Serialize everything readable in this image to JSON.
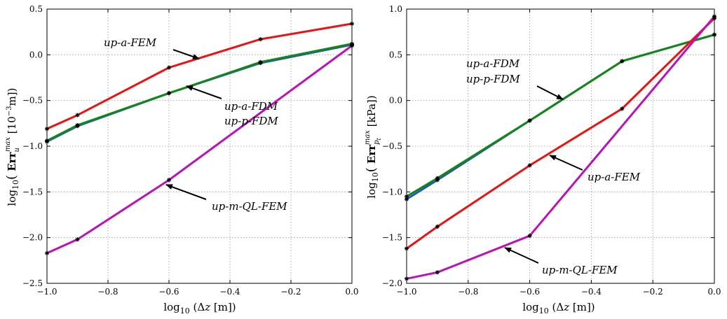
{
  "chart_data": [
    {
      "type": "line",
      "xlabel": "log10(Δz [m])",
      "ylabel": "log10( Err_u^max [10^-3 m])",
      "xlim": [
        -1.0,
        0.0
      ],
      "ylim": [
        -2.5,
        0.5
      ],
      "grid": true,
      "xticks": [
        -1.0,
        -0.8,
        -0.6,
        -0.4,
        -0.2,
        0.0
      ],
      "xtick_labels": [
        "−1.0",
        "−0.8",
        "−0.6",
        "−0.4",
        "−0.2",
        "0.0"
      ],
      "yticks": [
        -2.5,
        -2.0,
        -1.5,
        -1.0,
        -0.5,
        0.0,
        0.5
      ],
      "ytick_labels": [
        "−2.5",
        "−2.0",
        "−1.5",
        "−1.0",
        "−0.5",
        "0.0",
        "0.5"
      ],
      "series": [
        {
          "name": "up-a-FEM",
          "color": "#ee1111",
          "x": [
            -1.0,
            -0.9,
            -0.6,
            -0.3,
            0.0
          ],
          "y": [
            -0.81,
            -0.66,
            -0.14,
            0.17,
            0.34
          ]
        },
        {
          "name": "up-a-FDM",
          "color": "#2255cc",
          "x": [
            -1.0,
            -0.9,
            -0.6,
            -0.3,
            0.0
          ],
          "y": [
            -0.95,
            -0.78,
            -0.42,
            -0.09,
            0.11
          ]
        },
        {
          "name": "up-p-FDM",
          "color": "#118811",
          "x": [
            -1.0,
            -0.9,
            -0.6,
            -0.3,
            0.0
          ],
          "y": [
            -0.94,
            -0.77,
            -0.42,
            -0.08,
            0.12
          ]
        },
        {
          "name": "up-m-QL-FEM",
          "color": "#bb11bb",
          "x": [
            -1.0,
            -0.9,
            -0.6,
            0.0
          ],
          "y": [
            -2.17,
            -2.02,
            -1.37,
            0.1
          ]
        }
      ],
      "annotations": [
        {
          "text": "up-a-FEM",
          "arrow_to": [
            -0.52,
            -0.04
          ]
        },
        {
          "text": "up-a-FDM",
          "arrow_to": [
            -0.55,
            -0.35
          ]
        },
        {
          "text": "up-p-FDM",
          "arrow_to": null
        },
        {
          "text": "up-m-QL-FEM",
          "arrow_to": [
            -0.6,
            -1.44
          ]
        }
      ]
    },
    {
      "type": "line",
      "xlabel": "log10(Δz [m])",
      "ylabel": "log10( Err_pt^max [kPa])",
      "xlim": [
        -1.0,
        0.0
      ],
      "ylim": [
        -2.0,
        1.0
      ],
      "grid": true,
      "xticks": [
        -1.0,
        -0.8,
        -0.6,
        -0.4,
        -0.2,
        0.0
      ],
      "xtick_labels": [
        "−1.0",
        "−0.8",
        "−0.6",
        "−0.4",
        "−0.2",
        "0.0"
      ],
      "yticks": [
        -2.0,
        -1.5,
        -1.0,
        -0.5,
        0.0,
        0.5,
        1.0
      ],
      "ytick_labels": [
        "−2.0",
        "−1.5",
        "−1.0",
        "−0.5",
        "0.0",
        "0.5",
        "1.0"
      ],
      "series": [
        {
          "name": "up-a-FDM",
          "color": "#2255cc",
          "x": [
            -1.0,
            -0.9,
            -0.6,
            -0.3,
            0.0
          ],
          "y": [
            -1.08,
            -0.87,
            -0.22,
            0.43,
            0.72
          ]
        },
        {
          "name": "up-p-FDM",
          "color": "#118811",
          "x": [
            -1.0,
            -0.9,
            -0.6,
            -0.3,
            0.0
          ],
          "y": [
            -1.05,
            -0.85,
            -0.22,
            0.43,
            0.72
          ]
        },
        {
          "name": "up-a-FEM",
          "color": "#ee1111",
          "x": [
            -1.0,
            -0.9,
            -0.6,
            -0.3,
            0.0
          ],
          "y": [
            -1.62,
            -1.38,
            -0.71,
            -0.09,
            0.9
          ]
        },
        {
          "name": "up-m-QL-FEM",
          "color": "#bb11bb",
          "x": [
            -1.0,
            -0.9,
            -0.6,
            0.0
          ],
          "y": [
            -1.95,
            -1.88,
            -1.48,
            0.92
          ]
        }
      ],
      "annotations": [
        {
          "text": "up-a-FDM",
          "arrow_to": [
            -0.49,
            0.0
          ]
        },
        {
          "text": "up-p-FDM",
          "arrow_to": null
        },
        {
          "text": "up-a-FEM",
          "arrow_to": [
            -0.54,
            -0.6
          ]
        },
        {
          "text": "up-m-QL-FEM",
          "arrow_to": [
            -0.68,
            -1.61
          ]
        }
      ]
    }
  ]
}
